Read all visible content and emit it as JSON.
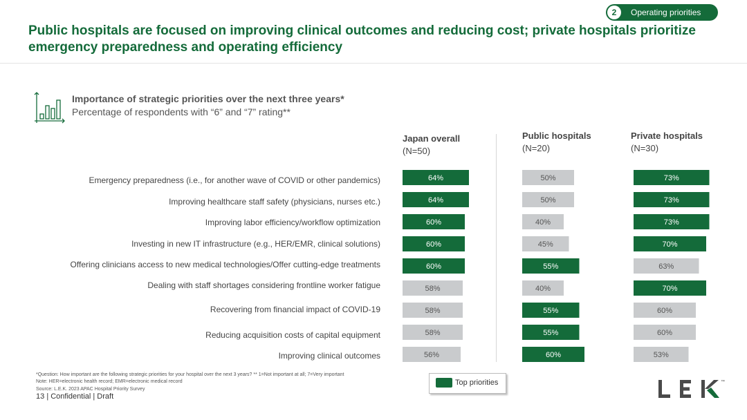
{
  "section": {
    "number": "2",
    "label": "Operating priorities"
  },
  "title": "Public hospitals are focused on improving clinical outcomes and reducing cost; private hospitals prioritize emergency preparedness and operating efficiency",
  "subtitle": {
    "line1": "Importance of strategic priorities over the next three years*",
    "line2": "Percentage of respondents with “6” and “7” rating**"
  },
  "columns": [
    {
      "name": "Japan overall",
      "n": "(N=50)"
    },
    {
      "name": "Public hospitals",
      "n": "(N=20)"
    },
    {
      "name": "Private hospitals",
      "n": "(N=30)"
    }
  ],
  "colors": {
    "top": "#146b3a",
    "other": "#c9cbcd",
    "top_text": "#ffffff",
    "other_text": "#555555"
  },
  "chart_data": {
    "type": "bar",
    "orientation": "horizontal",
    "categories": [
      "Emergency preparedness  (i.e., for another wave of COVID  or other pandemics)",
      "Improving  healthcare  staff safety (physicians,  nurses etc.)",
      "Improving  labor efficiency/workflow  optimization",
      "Investing  in new IT infrastructure (e.g., HER/EMR,  clinical solutions)",
      "Offering clinicians  access to new medical technologies/Offer  cutting-edge treatments",
      "Dealing with staff shortages  considering frontline  worker fatigue",
      "Recovering  from financial  impact of COVID-19",
      "Reducing  acquisition costs of capital equipment",
      "Improving  clinical outcomes"
    ],
    "series": [
      {
        "name": "Japan overall",
        "values": [
          64,
          64,
          60,
          60,
          60,
          58,
          58,
          58,
          56
        ],
        "labels": [
          "64%",
          "64%",
          "60%",
          "60%",
          "60%",
          "58%",
          "58%",
          "58%",
          "56%"
        ],
        "top_priority": [
          true,
          true,
          true,
          true,
          true,
          false,
          false,
          false,
          false
        ]
      },
      {
        "name": "Public hospitals",
        "values": [
          50,
          50,
          40,
          45,
          55,
          40,
          55,
          55,
          60
        ],
        "labels": [
          "50%",
          "50%",
          "40%",
          "45%",
          "55%",
          "40%",
          "55%",
          "55%",
          "60%"
        ],
        "top_priority": [
          false,
          false,
          false,
          false,
          true,
          false,
          true,
          true,
          true
        ]
      },
      {
        "name": "Private hospitals",
        "values": [
          73,
          73,
          73,
          70,
          63,
          70,
          60,
          60,
          53
        ],
        "labels": [
          "73%",
          "73%",
          "73%",
          "70%",
          "63%",
          "70%",
          "60%",
          "60%",
          "53%"
        ],
        "top_priority": [
          true,
          true,
          true,
          true,
          false,
          true,
          false,
          false,
          false
        ]
      }
    ]
  },
  "legend": {
    "label": "Top priorities"
  },
  "footnotes": {
    "question": "*Question: How important are the following strategic priorities for your hospital over the next 3 years? ** 1=Not important at all; 7=Very important",
    "note": "Note: HER=electronic health record; EMR=electronic medical record",
    "source": "Source:  L.E.K. 2023 APAC Hospital Priority Survey"
  },
  "footer": {
    "page": "13",
    "text": "| Confidential | Draft"
  },
  "logo": {
    "text": "LEK",
    "tm": "™"
  }
}
